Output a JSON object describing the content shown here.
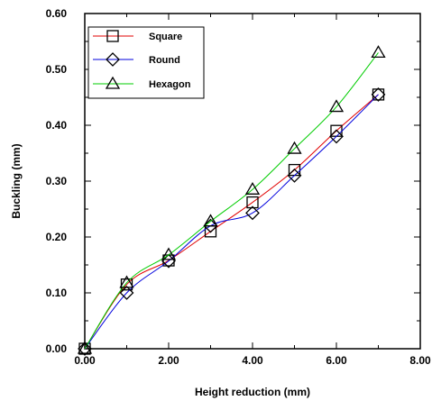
{
  "chart_data": {
    "type": "line",
    "xlabel": "Height reduction (mm)",
    "ylabel": "Buckling (mm)",
    "xlim": [
      0,
      8
    ],
    "ylim": [
      0,
      0.6
    ],
    "x_ticks": [
      "0.00",
      "2.00",
      "4.00",
      "6.00",
      "8.00"
    ],
    "y_ticks": [
      "0.00",
      "0.10",
      "0.20",
      "0.30",
      "0.40",
      "0.50",
      "0.60"
    ],
    "legend_position": "top-left",
    "grid": false,
    "series": [
      {
        "name": "Square",
        "marker": "square",
        "color": "#e00000",
        "points": [
          [
            0,
            0
          ],
          [
            1,
            0.115
          ],
          [
            2,
            0.158
          ],
          [
            3,
            0.21
          ],
          [
            4,
            0.262
          ],
          [
            5,
            0.32
          ],
          [
            6,
            0.39
          ],
          [
            7,
            0.455
          ]
        ]
      },
      {
        "name": "Round",
        "marker": "diamond",
        "color": "#0000dd",
        "points": [
          [
            0,
            0
          ],
          [
            1,
            0.1
          ],
          [
            2,
            0.157
          ],
          [
            3,
            0.22
          ],
          [
            4,
            0.243
          ],
          [
            5,
            0.31
          ],
          [
            6,
            0.38
          ],
          [
            7,
            0.455
          ]
        ]
      },
      {
        "name": "Hexagon",
        "marker": "triangle",
        "color": "#00cc00",
        "points": [
          [
            0,
            0
          ],
          [
            1,
            0.118
          ],
          [
            2,
            0.168
          ],
          [
            3,
            0.228
          ],
          [
            4,
            0.285
          ],
          [
            5,
            0.358
          ],
          [
            6,
            0.433
          ],
          [
            7,
            0.53
          ]
        ]
      }
    ]
  }
}
